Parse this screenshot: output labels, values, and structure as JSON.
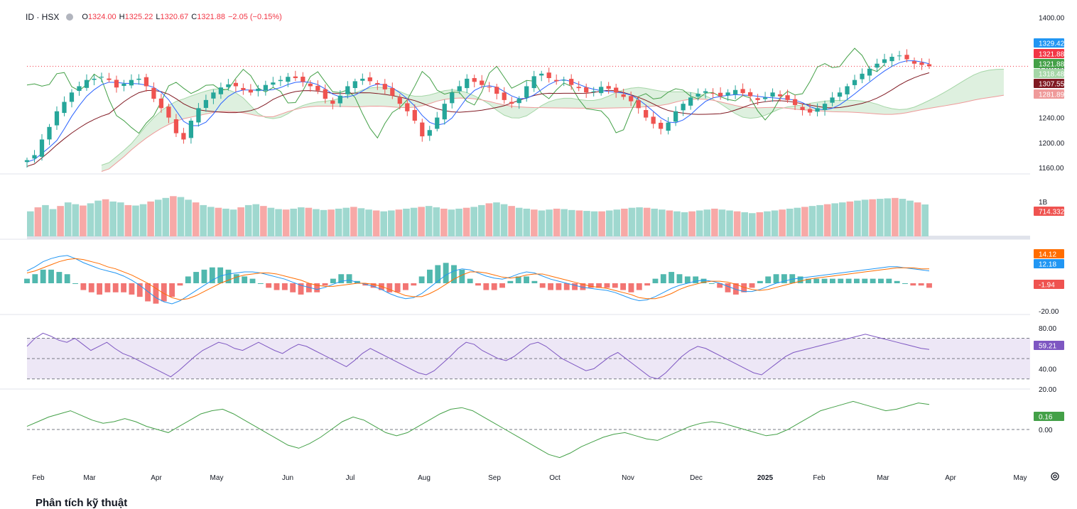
{
  "header": {
    "symbol": "ID · HSX",
    "o_label": "O",
    "o_value": "1324.00",
    "h_label": "H",
    "h_value": "1325.22",
    "l_label": "L",
    "l_value": "1320.67",
    "c_label": "C",
    "c_value": "1321.88",
    "change": "−2.05 (−0.15%)"
  },
  "bottom_title": "Phân tích kỹ thuật",
  "colors": {
    "up": "#26a69a",
    "down": "#ef5350",
    "vol_up": "#9fd8cf",
    "vol_down": "#f7a9a7",
    "tenkan": "#2962ff",
    "kijun": "#801922",
    "chikou": "#43a047",
    "cloud_up": "#c8e6c9",
    "cloud_down": "#ffcdd2",
    "macd": "#2196f3",
    "signal": "#ff6d00",
    "rsi": "#7e57c2",
    "rsi_band": "#ede7f6",
    "extra": "#43a047"
  },
  "icons": {
    "settings": "gear-icon",
    "header_dot": "status-dot-icon"
  },
  "chart_data": [
    {
      "type": "candlestick",
      "title": "ID · HSX",
      "price_axis_ticks": [
        "1400.00",
        "1320.00",
        "1280.00",
        "1240.00",
        "1200.00",
        "1160.00"
      ],
      "ylim": [
        1150,
        1405
      ],
      "price_points": [
        1172,
        1180,
        1205,
        1225,
        1250,
        1265,
        1280,
        1290,
        1300,
        1302,
        1305,
        1300,
        1288,
        1294,
        1300,
        1302,
        1290,
        1270,
        1255,
        1240,
        1215,
        1205,
        1235,
        1255,
        1268,
        1280,
        1288,
        1293,
        1290,
        1284,
        1280,
        1286,
        1292,
        1296,
        1300,
        1305,
        1303,
        1297,
        1290,
        1283,
        1270,
        1262,
        1275,
        1290,
        1298,
        1302,
        1298,
        1293,
        1285,
        1275,
        1262,
        1250,
        1235,
        1210,
        1220,
        1240,
        1262,
        1280,
        1290,
        1302,
        1297,
        1292,
        1288,
        1278,
        1268,
        1262,
        1270,
        1290,
        1306,
        1310,
        1303,
        1298,
        1300,
        1292,
        1287,
        1280,
        1282,
        1289,
        1286,
        1280,
        1273,
        1266,
        1255,
        1240,
        1230,
        1222,
        1232,
        1250,
        1262,
        1272,
        1278,
        1282,
        1278,
        1274,
        1280,
        1284,
        1279,
        1274,
        1268,
        1272,
        1280,
        1274,
        1268,
        1260,
        1252,
        1248,
        1255,
        1262,
        1272,
        1280,
        1290,
        1300,
        1310,
        1318,
        1326,
        1333,
        1337,
        1339,
        1333,
        1326,
        1324,
        1322
      ],
      "series_labels": [
        {
          "name": "Tenkan-sen",
          "value": "1329.42",
          "color": "#2196f3"
        },
        {
          "name": "Close",
          "value": "1321.88",
          "color": "#f23645"
        },
        {
          "name": "Chikou",
          "value": "1321.88",
          "color": "#43a047"
        },
        {
          "name": "Senkou A",
          "value": "1318.48",
          "color": "#a5d6a7"
        },
        {
          "name": "Kijun-sen",
          "value": "1307.55",
          "color": "#801922"
        },
        {
          "name": "Senkou B",
          "value": "1281.89",
          "color": "#ef9a9a"
        }
      ]
    },
    {
      "type": "bar",
      "title": "Volume",
      "axis_label": "1B",
      "last_value": "714.332M",
      "values": [
        560,
        650,
        700,
        610,
        680,
        760,
        720,
        690,
        740,
        800,
        830,
        780,
        760,
        700,
        690,
        720,
        780,
        820,
        860,
        900,
        880,
        820,
        760,
        700,
        660,
        640,
        620,
        600,
        650,
        700,
        720,
        680,
        640,
        610,
        600,
        620,
        650,
        640,
        610,
        590,
        600,
        620,
        640,
        660,
        630,
        600,
        580,
        560,
        580,
        600,
        620,
        640,
        660,
        680,
        650,
        620,
        600,
        620,
        640,
        660,
        700,
        740,
        760,
        720,
        680,
        640,
        620,
        600,
        580,
        600,
        620,
        610,
        590,
        580,
        570,
        560,
        560,
        580,
        600,
        620,
        640,
        650,
        640,
        620,
        600,
        580,
        560,
        540,
        560,
        580,
        600,
        620,
        600,
        580,
        560,
        540,
        520,
        540,
        560,
        580,
        600,
        620,
        640,
        660,
        680,
        700,
        720,
        740,
        760,
        780,
        800,
        820,
        830,
        840,
        850,
        860,
        840,
        800,
        760,
        714
      ]
    },
    {
      "type": "line",
      "title": "MACD",
      "axis_ticks": [
        "-20.00"
      ],
      "series": [
        {
          "name": "MACD",
          "last_value": "12.18",
          "values": [
            12,
            16,
            21,
            24,
            26,
            27,
            24,
            20,
            17,
            14,
            12,
            10,
            7,
            3,
            -2,
            -8,
            -14,
            -18,
            -20,
            -17,
            -12,
            -7,
            -2,
            3,
            7,
            9,
            10,
            11,
            11,
            10,
            8,
            6,
            4,
            1,
            -2,
            -4,
            -6,
            -4,
            -1,
            2,
            3,
            1,
            -1,
            -3,
            -6,
            -10,
            -13,
            -15,
            -14,
            -10,
            -4,
            2,
            8,
            12,
            14,
            13,
            10,
            7,
            5,
            4,
            6,
            9,
            11,
            10,
            7,
            4,
            2,
            0,
            -2,
            -4,
            -5,
            -6,
            -7,
            -9,
            -12,
            -15,
            -17,
            -16,
            -13,
            -9,
            -5,
            -2,
            0,
            2,
            3,
            2,
            0,
            -3,
            -6,
            -8,
            -8,
            -6,
            -3,
            0,
            2,
            4,
            5,
            6,
            7,
            8,
            9,
            10,
            11,
            12,
            13,
            14,
            15,
            16,
            16,
            15,
            14,
            13,
            12
          ]
        },
        {
          "name": "Signal",
          "last_value": "14.12",
          "values": [
            10,
            12,
            15,
            18,
            21,
            23,
            24,
            23,
            21,
            19,
            16,
            14,
            11,
            8,
            4,
            0,
            -5,
            -10,
            -14,
            -16,
            -15,
            -12,
            -8,
            -4,
            0,
            3,
            6,
            8,
            9,
            10,
            10,
            9,
            7,
            5,
            3,
            0,
            -2,
            -3,
            -3,
            -2,
            -1,
            0,
            0,
            -1,
            -3,
            -6,
            -9,
            -12,
            -13,
            -13,
            -10,
            -6,
            -1,
            4,
            8,
            11,
            11,
            10,
            8,
            6,
            5,
            6,
            8,
            9,
            9,
            7,
            5,
            3,
            1,
            -1,
            -3,
            -4,
            -5,
            -7,
            -9,
            -11,
            -14,
            -15,
            -15,
            -13,
            -10,
            -6,
            -3,
            -1,
            1,
            2,
            2,
            1,
            -1,
            -4,
            -6,
            -7,
            -6,
            -4,
            -2,
            0,
            2,
            4,
            5,
            6,
            7,
            8,
            9,
            10,
            11,
            12,
            13,
            14,
            15,
            15,
            15,
            14,
            14
          ]
        },
        {
          "name": "Histogram",
          "last_value": "-1.94"
        }
      ]
    },
    {
      "type": "line",
      "title": "RSI",
      "axis_ticks": [
        "80.00",
        "40.00",
        "20.00"
      ],
      "band": [
        30,
        70
      ],
      "midline": 50,
      "last_value": "59.21",
      "values": [
        62,
        70,
        75,
        72,
        68,
        66,
        70,
        64,
        58,
        62,
        66,
        60,
        55,
        52,
        48,
        44,
        40,
        36,
        32,
        38,
        45,
        52,
        58,
        62,
        66,
        64,
        60,
        58,
        62,
        66,
        62,
        58,
        55,
        60,
        64,
        62,
        58,
        54,
        50,
        46,
        42,
        48,
        55,
        60,
        56,
        52,
        48,
        44,
        40,
        36,
        34,
        38,
        45,
        52,
        60,
        66,
        64,
        58,
        54,
        50,
        48,
        52,
        58,
        64,
        66,
        62,
        56,
        50,
        46,
        42,
        38,
        40,
        46,
        52,
        56,
        50,
        44,
        38,
        32,
        30,
        36,
        44,
        52,
        58,
        62,
        60,
        56,
        52,
        48,
        44,
        40,
        36,
        34,
        40,
        46,
        52,
        56,
        58,
        60,
        62,
        64,
        66,
        68,
        70,
        72,
        74,
        72,
        70,
        68,
        66,
        64,
        62,
        60,
        59
      ]
    },
    {
      "type": "line",
      "title": "Oscillator",
      "axis_ticks": [
        "0.00"
      ],
      "last_value": "0.16",
      "values": [
        0.02,
        0.05,
        0.08,
        0.1,
        0.12,
        0.09,
        0.06,
        0.04,
        0.05,
        0.07,
        0.05,
        0.02,
        0.0,
        -0.02,
        0.02,
        0.06,
        0.1,
        0.12,
        0.13,
        0.1,
        0.06,
        0.02,
        -0.02,
        -0.06,
        -0.1,
        -0.12,
        -0.09,
        -0.05,
        0.0,
        0.05,
        0.08,
        0.06,
        0.02,
        -0.02,
        -0.04,
        -0.02,
        0.02,
        0.06,
        0.1,
        0.13,
        0.14,
        0.12,
        0.08,
        0.04,
        0.0,
        -0.04,
        -0.08,
        -0.12,
        -0.16,
        -0.18,
        -0.15,
        -0.11,
        -0.08,
        -0.05,
        -0.03,
        -0.02,
        -0.04,
        -0.06,
        -0.07,
        -0.04,
        -0.01,
        0.02,
        0.04,
        0.05,
        0.04,
        0.02,
        0.0,
        -0.02,
        -0.04,
        -0.03,
        0.0,
        0.04,
        0.08,
        0.12,
        0.14,
        0.16,
        0.18,
        0.16,
        0.14,
        0.12,
        0.13,
        0.15,
        0.17,
        0.16
      ]
    },
    {
      "type": "time_axis",
      "labels": [
        "Feb",
        "Mar",
        "Apr",
        "May",
        "Jun",
        "Jul",
        "Aug",
        "Sep",
        "Oct",
        "Nov",
        "Dec",
        "2025",
        "Feb",
        "Mar",
        "Apr",
        "May"
      ]
    }
  ]
}
